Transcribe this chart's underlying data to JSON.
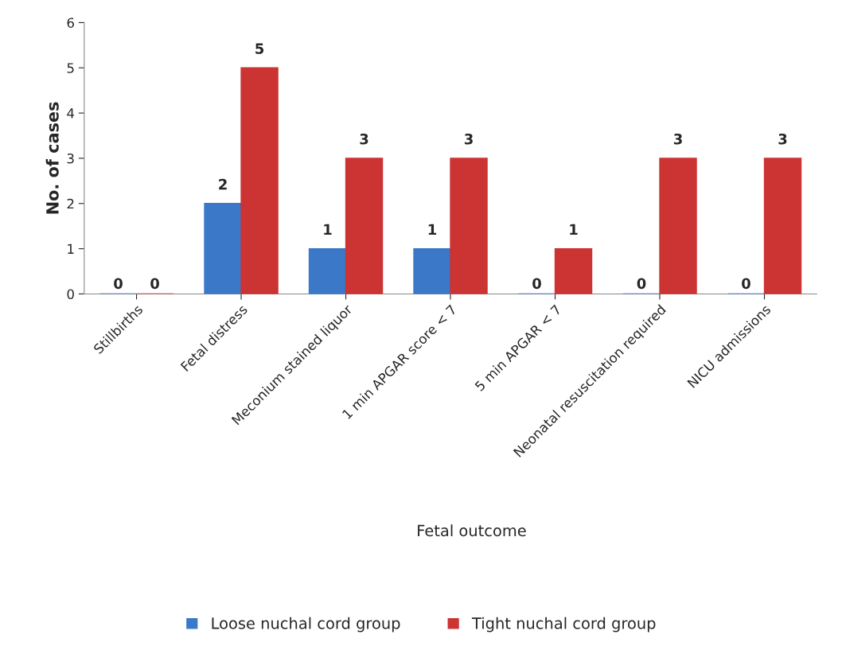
{
  "chart_data": {
    "type": "bar",
    "xlabel": "Fetal outcome",
    "ylabel": "No. of cases",
    "categories": [
      "Stillbirths",
      "Fetal distress",
      "Meconium stained liquor",
      "1 min APGAR score < 7",
      "5 min APGAR < 7",
      "Neonatal resuscitation required",
      "NICU admissions"
    ],
    "series": [
      {
        "name": "Loose nuchal cord group",
        "color": "#3b78c7",
        "values": [
          0,
          2,
          1,
          1,
          0,
          0,
          0
        ]
      },
      {
        "name": "Tight nuchal cord group",
        "color": "#cc3333",
        "values": [
          0,
          5,
          3,
          3,
          1,
          3,
          3
        ]
      }
    ],
    "ylim": [
      0,
      6
    ],
    "yticks": [
      0,
      1,
      2,
      3,
      4,
      5,
      6
    ],
    "grid": false,
    "legend": "bottom",
    "data_labels": true
  }
}
